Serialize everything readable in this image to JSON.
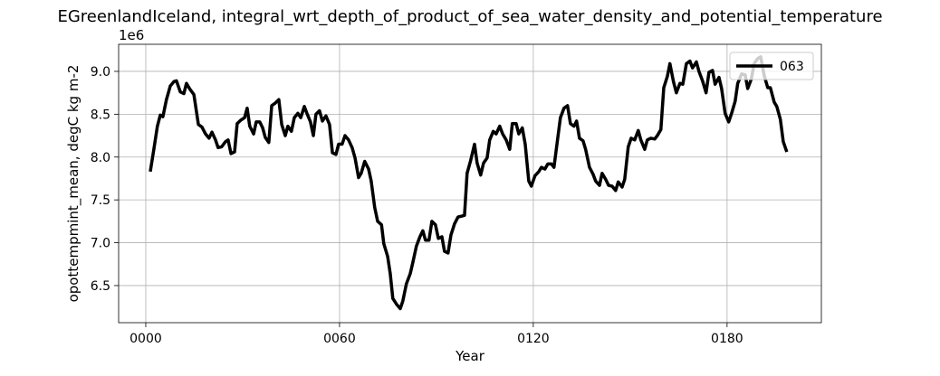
{
  "chart_data": {
    "type": "line",
    "title": "EGreenlandIceland, integral_wrt_depth_of_product_of_sea_water_density_and_potential_temperature",
    "xlabel": "Year",
    "ylabel": "opottempmint_mean, degC kg m-2",
    "y_offset_label": "1e6",
    "x": [
      1.4,
      2.5,
      3.6,
      4.5,
      5.3,
      6.4,
      7.6,
      8.7,
      9.5,
      10.7,
      11.8,
      12.6,
      13.7,
      14.9,
      16.3,
      17.4,
      18.5,
      19.6,
      20.5,
      21.6,
      22.4,
      23.5,
      24.7,
      25.5,
      26.4,
      27.5,
      28.3,
      29.4,
      30.6,
      31.4,
      32.2,
      33.4,
      34.2,
      35.3,
      36.2,
      37.0,
      38.1,
      39.0,
      40.1,
      41.2,
      42.1,
      43.2,
      44.0,
      45.1,
      46.0,
      47.1,
      48.0,
      49.1,
      49.9,
      51.0,
      51.9,
      52.7,
      53.8,
      54.7,
      55.8,
      56.9,
      57.8,
      58.9,
      59.7,
      60.8,
      61.7,
      62.8,
      63.9,
      64.8,
      65.9,
      66.7,
      67.8,
      69.0,
      69.8,
      70.9,
      71.8,
      73.0,
      73.7,
      74.9,
      75.7,
      76.5,
      77.7,
      78.8,
      79.6,
      80.7,
      81.9,
      82.7,
      83.8,
      84.9,
      85.8,
      86.6,
      87.7,
      88.6,
      89.7,
      90.6,
      91.7,
      92.5,
      93.6,
      94.5,
      95.6,
      96.7,
      97.8,
      98.7,
      99.5,
      100.6,
      101.8,
      102.6,
      103.7,
      104.6,
      105.7,
      106.5,
      107.6,
      108.5,
      109.6,
      110.5,
      111.6,
      112.7,
      113.5,
      114.7,
      115.5,
      116.6,
      117.5,
      118.6,
      119.4,
      120.5,
      121.7,
      122.5,
      123.6,
      124.5,
      125.6,
      126.4,
      127.6,
      128.4,
      129.5,
      130.6,
      131.5,
      132.6,
      133.4,
      134.3,
      135.4,
      136.2,
      137.4,
      138.5,
      139.3,
      140.5,
      141.3,
      142.4,
      143.3,
      144.4,
      145.5,
      146.3,
      147.5,
      148.3,
      149.4,
      150.3,
      151.4,
      152.5,
      153.3,
      154.5,
      155.3,
      156.4,
      157.6,
      158.4,
      159.5,
      160.4,
      161.5,
      162.3,
      163.4,
      164.3,
      165.4,
      166.3,
      167.4,
      168.5,
      169.3,
      170.5,
      171.3,
      172.4,
      173.5,
      174.4,
      175.5,
      176.3,
      177.5,
      178.3,
      179.4,
      180.5,
      181.4,
      182.5,
      183.3,
      184.5,
      185.6,
      186.4,
      187.5,
      188.4,
      189.5,
      190.4,
      191.5,
      192.6,
      193.4,
      194.6,
      195.4,
      196.5,
      197.4,
      198.5
    ],
    "series": [
      {
        "name": "063",
        "color": "#000000",
        "values": [
          7.83,
          8.09,
          8.36,
          8.49,
          8.47,
          8.67,
          8.83,
          8.88,
          8.89,
          8.76,
          8.74,
          8.86,
          8.79,
          8.73,
          8.38,
          8.35,
          8.27,
          8.22,
          8.29,
          8.2,
          8.11,
          8.12,
          8.18,
          8.2,
          8.04,
          8.06,
          8.39,
          8.43,
          8.46,
          8.57,
          8.36,
          8.27,
          8.41,
          8.41,
          8.34,
          8.23,
          8.17,
          8.6,
          8.63,
          8.67,
          8.38,
          8.25,
          8.36,
          8.3,
          8.46,
          8.51,
          8.46,
          8.59,
          8.51,
          8.41,
          8.25,
          8.5,
          8.54,
          8.42,
          8.48,
          8.38,
          8.05,
          8.03,
          8.15,
          8.15,
          8.25,
          8.2,
          8.11,
          7.99,
          7.76,
          7.81,
          7.95,
          7.86,
          7.72,
          7.41,
          7.25,
          7.21,
          6.99,
          6.84,
          6.64,
          6.35,
          6.28,
          6.23,
          6.32,
          6.52,
          6.64,
          6.77,
          6.96,
          7.07,
          7.14,
          7.03,
          7.03,
          7.25,
          7.21,
          7.05,
          7.07,
          6.9,
          6.88,
          7.09,
          7.22,
          7.3,
          7.31,
          7.32,
          7.81,
          7.96,
          8.15,
          7.93,
          7.79,
          7.93,
          7.99,
          8.2,
          8.3,
          8.27,
          8.36,
          8.27,
          8.2,
          8.09,
          8.39,
          8.39,
          8.27,
          8.34,
          8.15,
          7.72,
          7.66,
          7.78,
          7.83,
          7.88,
          7.86,
          7.92,
          7.92,
          7.88,
          8.23,
          8.46,
          8.57,
          8.6,
          8.39,
          8.36,
          8.42,
          8.22,
          8.19,
          8.09,
          7.88,
          7.8,
          7.72,
          7.67,
          7.81,
          7.74,
          7.67,
          7.66,
          7.61,
          7.71,
          7.65,
          7.74,
          8.12,
          8.22,
          8.2,
          8.31,
          8.2,
          8.09,
          8.2,
          8.22,
          8.21,
          8.25,
          8.32,
          8.81,
          8.94,
          9.09,
          8.88,
          8.75,
          8.86,
          8.85,
          9.09,
          9.12,
          9.04,
          9.11,
          9.0,
          8.89,
          8.75,
          8.99,
          9.01,
          8.85,
          8.93,
          8.8,
          8.51,
          8.41,
          8.51,
          8.65,
          8.86,
          8.97,
          8.96,
          8.8,
          8.91,
          9.09,
          9.15,
          9.17,
          8.95,
          8.81,
          8.81,
          8.64,
          8.59,
          8.44,
          8.18,
          8.06
        ]
      }
    ],
    "xlim": [
      -8.4,
      209.2
    ],
    "ylim": [
      6.067,
      9.316
    ],
    "xticks": [
      {
        "value": 0,
        "label": "0000"
      },
      {
        "value": 60,
        "label": "0060"
      },
      {
        "value": 120,
        "label": "0120"
      },
      {
        "value": 180,
        "label": "0180"
      }
    ],
    "yticks": [
      6.5,
      {
        "value": 7,
        "label": "7.0"
      },
      7.5,
      {
        "value": 8,
        "label": "8.0"
      },
      8.5,
      {
        "value": 9,
        "label": "9.0"
      }
    ],
    "grid": true,
    "legend": "upper right"
  }
}
